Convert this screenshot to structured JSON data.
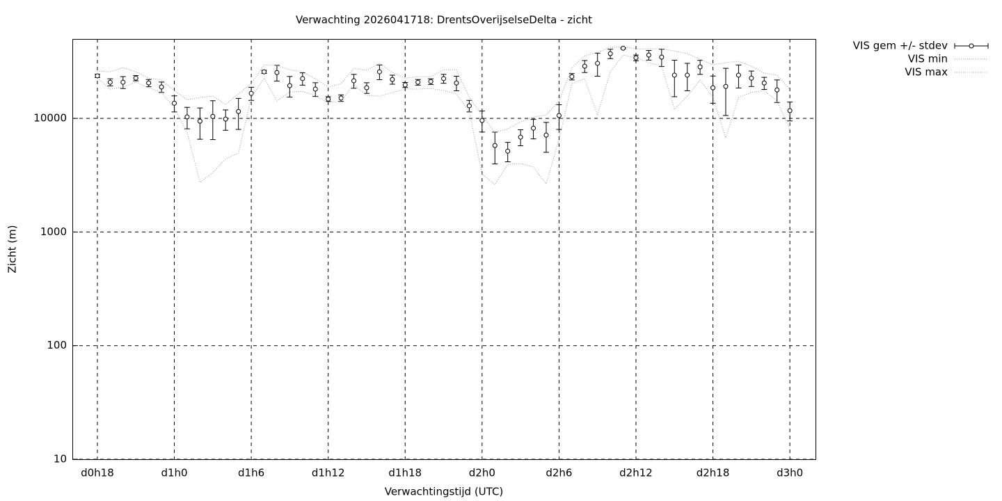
{
  "chart_data": {
    "type": "line",
    "title": "Verwachting 2026041718: DrentsOverijselseDelta - zicht",
    "x_label": "Verwachtingstijd (UTC)",
    "y_label": "Zicht (m)",
    "log_y": true,
    "grid": true,
    "legend": "outside-top-right",
    "categories": [
      "d0h18",
      null,
      null,
      null,
      null,
      null,
      "d1h0",
      null,
      null,
      null,
      null,
      null,
      "d1h6",
      null,
      null,
      null,
      null,
      null,
      "d1h12",
      null,
      null,
      null,
      null,
      null,
      "d1h18",
      null,
      null,
      null,
      null,
      null,
      "d2h0",
      null,
      null,
      null,
      null,
      null,
      "d2h6",
      null,
      null,
      null,
      null,
      null,
      "d2h12",
      null,
      null,
      null,
      null,
      null,
      "d2h18",
      null,
      null,
      null,
      null,
      null,
      "d3h0"
    ],
    "ylim": [
      10,
      50000
    ],
    "yticks": [
      10,
      100,
      1000,
      10000
    ],
    "series": [
      {
        "name": "VIS gem +/- stdev",
        "color": "#000000",
        "values": [
          23700,
          20800,
          20800,
          22600,
          20500,
          18900,
          13600,
          10300,
          9450,
          10400,
          9860,
          11500,
          16600,
          25700,
          25300,
          19400,
          22400,
          18100,
          14800,
          15100,
          21400,
          18600,
          25700,
          22000,
          19700,
          20800,
          21100,
          22400,
          20500,
          12900,
          9590,
          5770,
          5150,
          6840,
          8200,
          7130,
          10600,
          23300,
          28800,
          30500,
          37100,
          41500,
          34100,
          36100,
          34600,
          24000,
          24000,
          28400,
          18600,
          19100,
          24000,
          22600,
          20500,
          17800,
          11700
        ],
        "errors": [
          800,
          1500,
          2500,
          1200,
          1500,
          2000,
          2200,
          2200,
          2900,
          3900,
          2000,
          3500,
          2200,
          800,
          4000,
          4000,
          2800,
          2500,
          700,
          1000,
          3000,
          2000,
          3800,
          2000,
          1000,
          1200,
          1200,
          2000,
          3000,
          1500,
          2000,
          1800,
          1000,
          1100,
          1600,
          2100,
          2600,
          1500,
          3500,
          7000,
          3500,
          500,
          2000,
          3500,
          6000,
          8500,
          6500,
          4000,
          5000,
          8500,
          5500,
          3500,
          2500,
          4000,
          2200
        ]
      },
      {
        "name": "VIS min",
        "color": "#999999",
        "values": [
          22600,
          18100,
          18900,
          20800,
          18600,
          16900,
          12400,
          7540,
          2730,
          3330,
          4410,
          4940,
          15300,
          22600,
          14200,
          17100,
          17300,
          15700,
          13800,
          14200,
          19900,
          15900,
          15700,
          16900,
          18100,
          18100,
          18300,
          17600,
          16400,
          11500,
          3240,
          2620,
          3940,
          4000,
          3730,
          2660,
          6550,
          20200,
          22300,
          10700,
          25700,
          36100,
          34100,
          30900,
          28800,
          12000,
          15700,
          21700,
          15300,
          6740,
          15300,
          16900,
          17600,
          14200,
          8090
        ]
      },
      {
        "name": "VIS max",
        "color": "#999999",
        "values": [
          26100,
          25700,
          28000,
          25700,
          22600,
          21700,
          17600,
          14600,
          15300,
          15700,
          13300,
          16400,
          20200,
          29600,
          29200,
          26800,
          25700,
          22300,
          18900,
          20200,
          27600,
          26500,
          30500,
          25400,
          22600,
          23300,
          23300,
          26800,
          26800,
          15300,
          10700,
          7540,
          8090,
          9320,
          10300,
          10700,
          14200,
          28000,
          35600,
          38100,
          42100,
          42700,
          40900,
          40900,
          40900,
          39200,
          37100,
          33100,
          29600,
          30900,
          31800,
          28800,
          25000,
          24000,
          18100
        ]
      }
    ]
  }
}
